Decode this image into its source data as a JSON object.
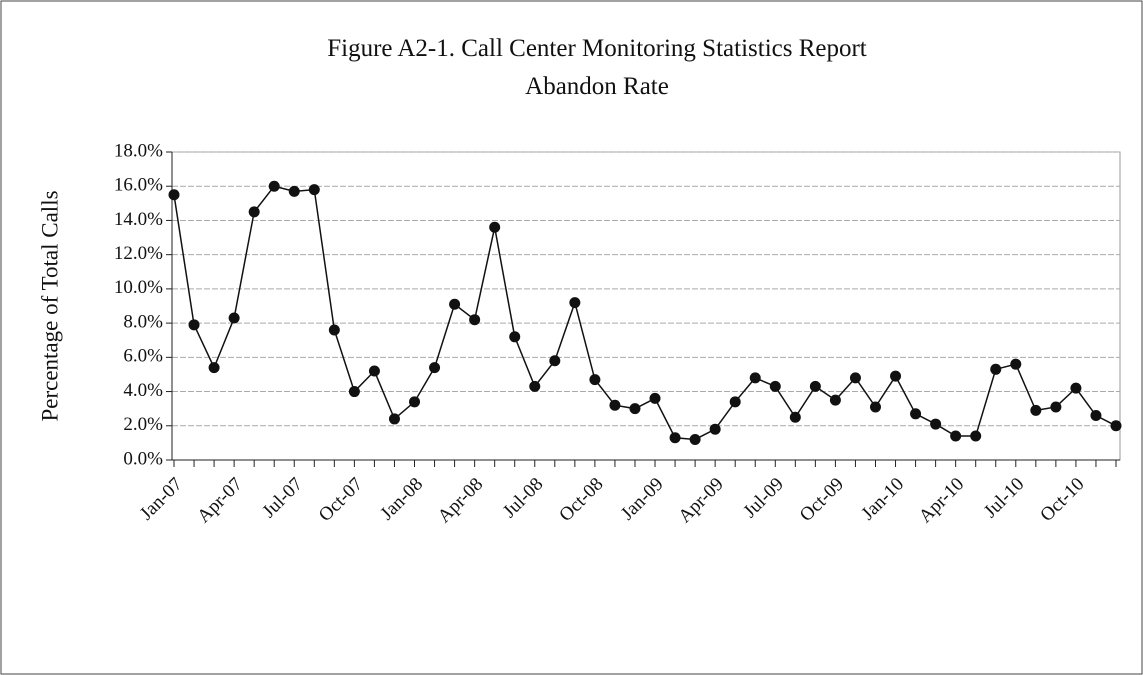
{
  "chart_data": {
    "type": "line",
    "title": "Figure A2-1.  Call Center Monitoring Statistics Report",
    "subtitle": "Abandon Rate",
    "y_label": "Percentage of Total Calls",
    "categories": [
      "Jan-07",
      null,
      null,
      "Apr-07",
      null,
      null,
      "Jul-07",
      null,
      null,
      "Oct-07",
      null,
      null,
      "Jan-08",
      null,
      null,
      "Apr-08",
      null,
      null,
      "Jul-08",
      null,
      null,
      "Oct-08",
      null,
      null,
      "Jan-09",
      null,
      null,
      "Apr-09",
      null,
      null,
      "Jul-09",
      null,
      null,
      "Oct-09",
      null,
      null,
      "Jan-10",
      null,
      null,
      "Apr-10",
      null,
      null,
      "Jul-10",
      null,
      null,
      "Oct-10",
      null,
      null
    ],
    "series": [
      {
        "color": "#111111",
        "values": [
          15.5,
          7.9,
          5.4,
          8.3,
          14.5,
          16.0,
          15.7,
          15.8,
          7.6,
          4.0,
          5.2,
          2.4,
          3.4,
          5.4,
          9.1,
          8.2,
          13.6,
          7.2,
          4.3,
          5.8,
          9.2,
          4.7,
          3.2,
          3.0,
          3.6,
          1.3,
          1.2,
          1.8,
          3.4,
          4.8,
          4.3,
          2.5,
          4.3,
          3.5,
          4.8,
          3.1,
          4.9,
          2.7,
          2.1,
          1.4,
          1.4,
          5.3,
          5.6,
          2.9,
          3.1,
          4.2,
          2.6,
          2.0
        ]
      }
    ],
    "ylim": [
      0,
      18
    ],
    "yticks": [
      {
        "value": 0,
        "label": "0.0%"
      },
      {
        "value": 2,
        "label": "2.0%"
      },
      {
        "value": 4,
        "label": "4.0%"
      },
      {
        "value": 6,
        "label": "6.0%"
      },
      {
        "value": 8,
        "label": "8.0%"
      },
      {
        "value": 10,
        "label": "10.0%"
      },
      {
        "value": 12,
        "label": "12.0%"
      },
      {
        "value": 14,
        "label": "14.0%"
      },
      {
        "value": 16,
        "label": "16.0%"
      },
      {
        "value": 18,
        "label": "18.0%"
      }
    ],
    "grid": true
  }
}
